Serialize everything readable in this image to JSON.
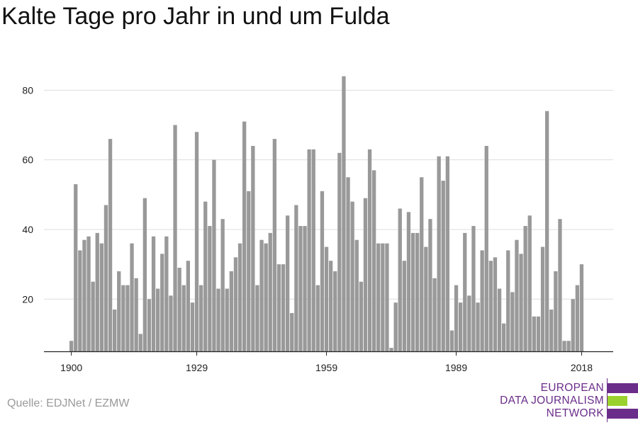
{
  "title": "Kalte Tage pro Jahr in und um Fulda",
  "source": "Quelle: EDJNet / EZMW",
  "logo": {
    "line1": "EUROPEAN",
    "line2": "DATA JOURNALISM",
    "line3": "NETWORK",
    "color_purple": "#6b2d8a",
    "color_green": "#9bd12f"
  },
  "colors": {
    "bar": "#999999",
    "grid": "#dddddd",
    "axis": "#222222",
    "text": "#222222"
  },
  "chart_data": {
    "type": "bar",
    "title": "Kalte Tage pro Jahr in und um Fulda",
    "xlabel": "",
    "ylabel": "",
    "x_start": 1900,
    "x_ticks": [
      1900,
      1929,
      1959,
      1989,
      2018
    ],
    "y_ticks": [
      20,
      40,
      60,
      80
    ],
    "ylim": [
      5,
      88
    ],
    "grid": true,
    "values": [
      8,
      53,
      34,
      37,
      38,
      25,
      39,
      36,
      47,
      66,
      17,
      28,
      24,
      24,
      36,
      26,
      10,
      49,
      20,
      38,
      23,
      33,
      38,
      21,
      70,
      29,
      24,
      31,
      19,
      68,
      24,
      48,
      41,
      60,
      23,
      43,
      23,
      28,
      32,
      36,
      71,
      51,
      64,
      24,
      37,
      36,
      39,
      66,
      30,
      30,
      44,
      16,
      47,
      41,
      41,
      63,
      63,
      24,
      51,
      35,
      31,
      28,
      62,
      84,
      55,
      48,
      37,
      25,
      49,
      63,
      57,
      36,
      36,
      36,
      6,
      19,
      46,
      31,
      45,
      39,
      39,
      55,
      35,
      43,
      26,
      61,
      54,
      61,
      11,
      24,
      19,
      39,
      21,
      41,
      19,
      34,
      64,
      31,
      32,
      23,
      13,
      34,
      22,
      37,
      33,
      41,
      44,
      15,
      15,
      35,
      74,
      17,
      28,
      43,
      8,
      8,
      20,
      24,
      30
    ]
  }
}
